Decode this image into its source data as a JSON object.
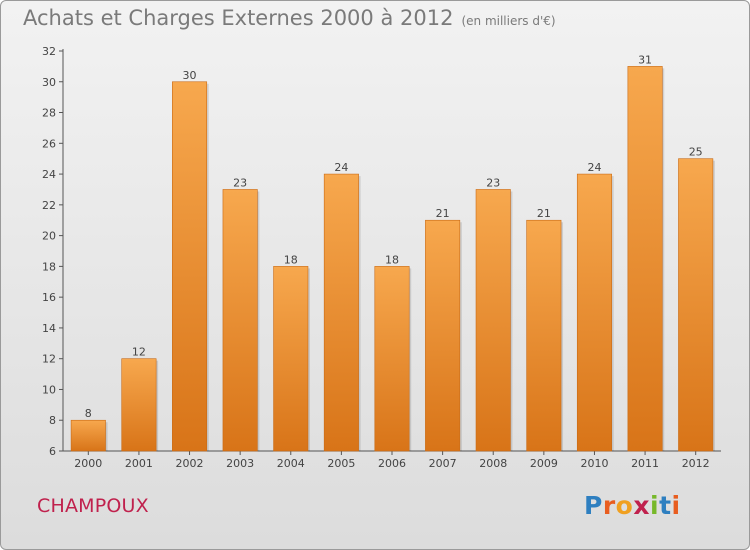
{
  "header": {
    "title": "Achats et Charges Externes 2000 à 2012",
    "unit": "(en milliers d'€)"
  },
  "footer": {
    "commune": "CHAMPOUX",
    "logo": {
      "letters": [
        "P",
        "r",
        "o",
        "x",
        "i",
        "t",
        "i"
      ],
      "colors": [
        "#2e7fc0",
        "#e85d1f",
        "#f0a020",
        "#c0214d",
        "#77b82a",
        "#2e7fc0",
        "#e85d1f"
      ]
    }
  },
  "chart_data": {
    "type": "bar",
    "title": "Achats et Charges Externes 2000 à 2012",
    "subtitle": "(en milliers d'€)",
    "categories": [
      "2000",
      "2001",
      "2002",
      "2003",
      "2004",
      "2005",
      "2006",
      "2007",
      "2008",
      "2009",
      "2010",
      "2011",
      "2012"
    ],
    "values": [
      8,
      12,
      30,
      23,
      18,
      24,
      18,
      21,
      23,
      21,
      24,
      31,
      25
    ],
    "ylim": [
      6,
      32
    ],
    "yticks": [
      6,
      8,
      10,
      12,
      14,
      16,
      18,
      20,
      22,
      24,
      26,
      28,
      30,
      32
    ],
    "xlabel": "",
    "ylabel": "",
    "grid": false,
    "data_labels": true,
    "colors": {
      "bar_light": "#f7a84e",
      "bar_dark": "#d87418",
      "axis": "#555555",
      "text": "#444444"
    }
  }
}
